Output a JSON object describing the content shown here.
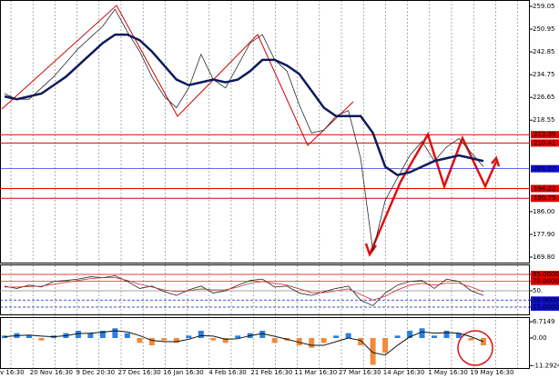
{
  "chart_data": [
    {
      "type": "line",
      "ylim": [
        167.86,
        261.31
      ],
      "yticks": [
        259.05,
        250.95,
        242.85,
        234.75,
        226.65,
        218.55,
        {
          "value": 186,
          "label": "186.00"
        },
        {
          "value": 177.9,
          "label": "177.90"
        },
        {
          "value": 169.8,
          "label": "169.80"
        }
      ],
      "series": [
        {
          "color": "#2a2a2a",
          "values": [
            228,
            226,
            226,
            230,
            234,
            239,
            244,
            248,
            252,
            258,
            250,
            243,
            234,
            227,
            223,
            230,
            242,
            233,
            230,
            238,
            246,
            249,
            240,
            236,
            224,
            214,
            215,
            220,
            222,
            205,
            172,
            190,
            198,
            206,
            211,
            204,
            209,
            212,
            207,
            202
          ]
        },
        {
          "color": "#0d1a5c",
          "values": [
            227,
            226,
            227,
            228,
            231,
            234,
            238,
            242,
            246,
            249,
            249,
            247,
            243,
            238,
            233,
            231,
            232,
            233,
            232,
            233,
            236,
            240,
            240,
            238,
            235,
            229,
            223,
            220,
            220,
            220,
            214,
            202,
            199,
            200,
            202,
            204,
            205,
            206,
            205,
            204
          ]
        }
      ],
      "levels": [
        213.39,
        210.41,
        194.22,
        190.75
      ],
      "level_color": "#e00000",
      "current_price": 201.27,
      "current_color": "#1010d0"
    },
    {
      "type": "line",
      "ylim": [
        -0.6,
        106.4
      ],
      "yticks": [
        {
          "value": 85,
          "label": "85.0000"
        },
        {
          "value": 70,
          "label": "70.0000"
        },
        {
          "value": 50,
          "label": "50."
        },
        {
          "value": 30,
          "label": "30.0000"
        },
        {
          "value": 15,
          "label": "15.0000"
        }
      ],
      "series": [
        {
          "color": "#222222",
          "values": [
            60,
            55,
            62,
            58,
            70,
            72,
            75,
            80,
            78,
            82,
            70,
            55,
            60,
            48,
            40,
            52,
            60,
            45,
            50,
            62,
            72,
            75,
            58,
            60,
            45,
            40,
            48,
            55,
            60,
            30,
            18,
            45,
            62,
            70,
            72,
            55,
            75,
            70,
            50,
            40
          ]
        },
        {
          "color": "#d03030",
          "values": [
            58,
            58,
            59,
            60,
            64,
            68,
            72,
            76,
            78,
            78,
            72,
            64,
            58,
            52,
            48,
            50,
            54,
            52,
            52,
            58,
            66,
            70,
            66,
            62,
            54,
            46,
            46,
            50,
            54,
            42,
            30,
            38,
            52,
            62,
            66,
            62,
            66,
            66,
            58,
            48
          ]
        }
      ]
    },
    {
      "type": "bar",
      "ylim": [
        -12.31,
        8.58
      ],
      "yticks": [
        6.7149,
        {
          "value": 0,
          "label": "0.00"
        },
        -11.2924
      ],
      "values": [
        1,
        2,
        1,
        -1,
        1,
        2,
        3,
        2,
        3,
        4,
        2,
        -2,
        -3,
        -1,
        -2,
        1,
        3,
        -1,
        -2,
        1,
        2,
        3,
        -2,
        -1,
        -3,
        -4,
        -2,
        1,
        2,
        -3,
        -11,
        -6,
        1,
        3,
        4,
        1,
        3,
        2,
        -1,
        -3
      ],
      "positive_color": "#2a7fe0",
      "negative_color": "#f08a3c",
      "signal": {
        "color": "#111111",
        "values": [
          0.5,
          1,
          1.2,
          0.8,
          0.5,
          1,
          1.8,
          2,
          2.4,
          3,
          2.5,
          1,
          -1,
          -1.5,
          -1.5,
          -0.5,
          1,
          0.8,
          -0.5,
          -0.3,
          1,
          1.8,
          0.7,
          -0.5,
          -1.8,
          -3,
          -3,
          -1.5,
          0,
          -1,
          -6,
          -7,
          -3,
          0.5,
          2.5,
          2,
          2.2,
          2,
          0.5,
          -1.5
        ]
      }
    }
  ],
  "time_axis": [
    "v 16:30",
    "20 Nov 16:30",
    "9 Dec 20:30",
    "27 Dec 16:30",
    "16 Jan 16:30",
    "4 Feb 16:30",
    "21 Feb 16:30",
    "11 Mar 16:30",
    "27 Mar 16:30",
    "14 Apr 16:30",
    "1 May 16:30",
    "19 May 16:30"
  ]
}
